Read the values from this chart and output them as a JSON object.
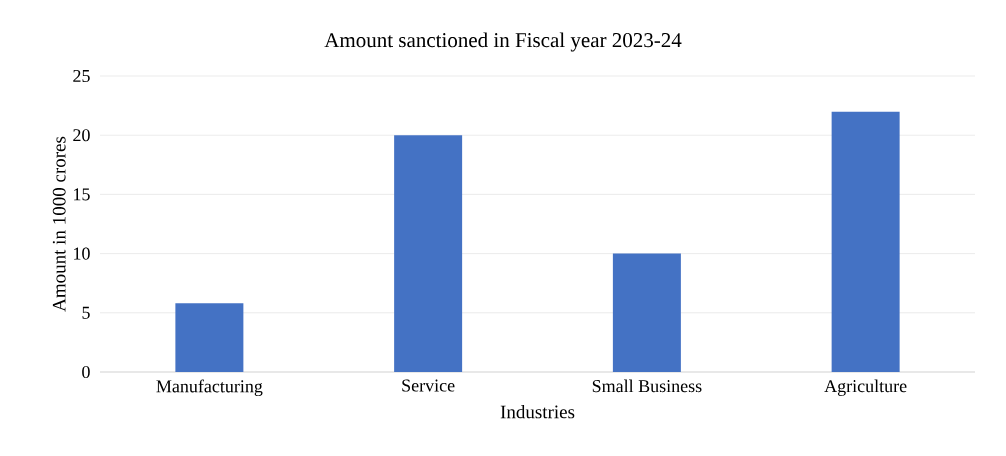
{
  "chart_data": {
    "type": "bar",
    "title": "Amount sanctioned in Fiscal year 2023-24",
    "xlabel": "Industries",
    "ylabel": "Amount in 1000 crores",
    "categories": [
      "Manufacturing",
      "Service",
      "Small Business",
      "Agriculture"
    ],
    "values": [
      5.8,
      20,
      10,
      22
    ],
    "color": "#4472c4",
    "ylim": [
      0,
      25
    ],
    "yticks": [
      0,
      5,
      10,
      15,
      20,
      25
    ],
    "grid": "y"
  }
}
